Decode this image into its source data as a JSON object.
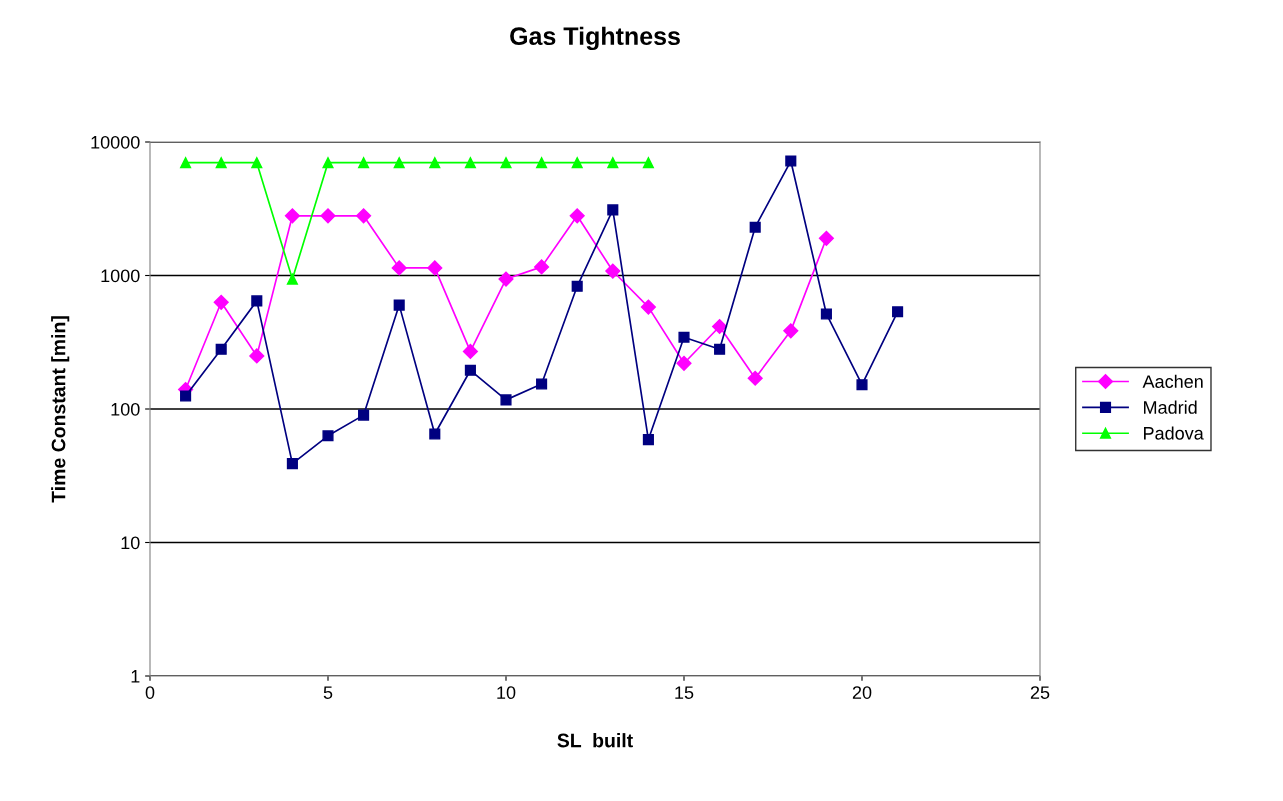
{
  "chart_data": {
    "type": "line",
    "title": "Gas Tightness",
    "xlabel": "SL  built",
    "ylabel": "Time Constant [min]",
    "x": [
      1,
      2,
      3,
      4,
      5,
      6,
      7,
      8,
      9,
      10,
      11,
      12,
      13,
      14,
      15,
      16,
      17,
      18,
      19,
      20,
      21
    ],
    "series": [
      {
        "name": "Aachen",
        "color": "#ff00ff",
        "marker": "diamond",
        "values": [
          140,
          630,
          250,
          2800,
          2800,
          2800,
          1140,
          1140,
          270,
          940,
          1160,
          2800,
          1080,
          580,
          220,
          415,
          170,
          385,
          1900,
          null,
          null
        ]
      },
      {
        "name": "Madrid",
        "color": "#000080",
        "marker": "square",
        "values": [
          125,
          280,
          645,
          39,
          63,
          90,
          600,
          65,
          195,
          117,
          154,
          830,
          3100,
          59,
          345,
          280,
          2300,
          7200,
          515,
          152,
          535
        ]
      },
      {
        "name": "Padova",
        "color": "#00ff00",
        "marker": "triangle",
        "values": [
          7000,
          7000,
          7000,
          940,
          7000,
          7000,
          7000,
          7000,
          7000,
          7000,
          7000,
          7000,
          7000,
          7000,
          null,
          null,
          null,
          null,
          null,
          null,
          null
        ]
      }
    ],
    "log": "y",
    "xlim": [
      0,
      25
    ],
    "xticks": [
      0,
      5,
      10,
      15,
      20,
      25
    ],
    "ylim": [
      1,
      10000
    ],
    "yticks": [
      1,
      10,
      100,
      1000,
      10000
    ],
    "grid": "y",
    "legend": "right",
    "line_style": "solid"
  }
}
